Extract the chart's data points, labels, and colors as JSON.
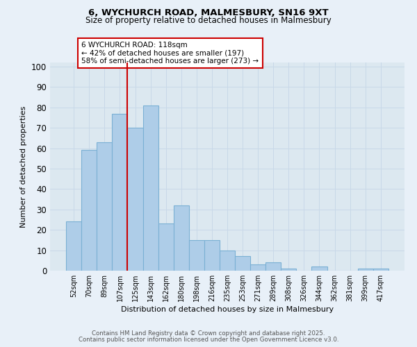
{
  "title": "6, WYCHURCH ROAD, MALMESBURY, SN16 9XT",
  "subtitle": "Size of property relative to detached houses in Malmesbury",
  "xlabel": "Distribution of detached houses by size in Malmesbury",
  "ylabel": "Number of detached properties",
  "bar_labels": [
    "52sqm",
    "70sqm",
    "89sqm",
    "107sqm",
    "125sqm",
    "143sqm",
    "162sqm",
    "180sqm",
    "198sqm",
    "216sqm",
    "235sqm",
    "253sqm",
    "271sqm",
    "289sqm",
    "308sqm",
    "326sqm",
    "344sqm",
    "362sqm",
    "381sqm",
    "399sqm",
    "417sqm"
  ],
  "bar_values": [
    24,
    59,
    63,
    77,
    70,
    81,
    23,
    32,
    15,
    15,
    10,
    7,
    3,
    4,
    1,
    0,
    2,
    0,
    0,
    1,
    1
  ],
  "bar_color": "#aecde8",
  "bar_edge_color": "#7ab0d4",
  "vline_x_index": 4,
  "vline_color": "#cc0000",
  "annotation_text": "6 WYCHURCH ROAD: 118sqm\n← 42% of detached houses are smaller (197)\n58% of semi-detached houses are larger (273) →",
  "annotation_box_color": "#ffffff",
  "annotation_box_edge_color": "#cc0000",
  "ylim": [
    0,
    102
  ],
  "yticks": [
    0,
    10,
    20,
    30,
    40,
    50,
    60,
    70,
    80,
    90,
    100
  ],
  "grid_color": "#c8d8e8",
  "bg_color": "#dce8f0",
  "fig_bg_color": "#e8f0f8",
  "footer_line1": "Contains HM Land Registry data © Crown copyright and database right 2025.",
  "footer_line2": "Contains public sector information licensed under the Open Government Licence v3.0."
}
